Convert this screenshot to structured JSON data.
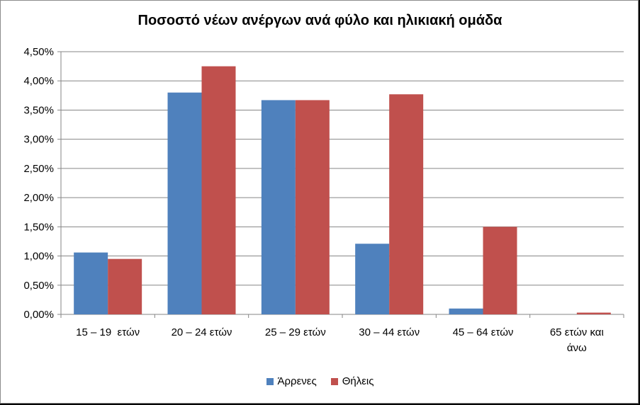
{
  "chart_data": {
    "type": "bar",
    "title": "Ποσοστό νέων ανέργων ανά φύλο και ηλικιακή ομάδα",
    "categories": [
      "15 – 19  ετών",
      "20 – 24 ετών",
      "25 – 29 ετών",
      "30 – 44 ετών",
      "45 – 64 ετών",
      "65 ετών και άνω"
    ],
    "category_lines": [
      [
        "15 – 19  ετών"
      ],
      [
        "20 – 24 ετών"
      ],
      [
        "25 – 29 ετών"
      ],
      [
        "30 – 44 ετών"
      ],
      [
        "45 – 64 ετών"
      ],
      [
        "65 ετών και",
        "άνω"
      ]
    ],
    "series": [
      {
        "name": "Άρρενες",
        "color": "#4f81bd",
        "values": [
          1.06,
          3.8,
          3.67,
          1.21,
          0.1,
          0.0
        ]
      },
      {
        "name": "Θήλεις",
        "color": "#c0504d",
        "values": [
          0.95,
          4.25,
          3.67,
          3.77,
          1.5,
          0.03
        ]
      }
    ],
    "ylim": [
      0,
      4.5
    ],
    "yticks": [
      "0,00%",
      "0,50%",
      "1,00%",
      "1,50%",
      "2,00%",
      "2,50%",
      "3,00%",
      "3,50%",
      "4,00%",
      "4,50%"
    ],
    "ytick_values": [
      0,
      0.5,
      1,
      1.5,
      2,
      2.5,
      3,
      3.5,
      4,
      4.5
    ],
    "grid": true,
    "legend_position": "bottom"
  }
}
